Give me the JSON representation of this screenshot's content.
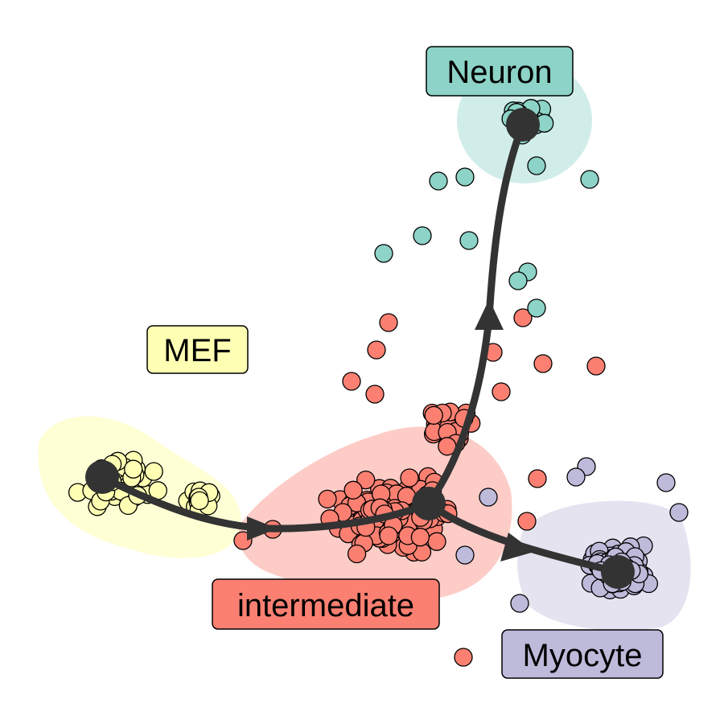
{
  "colors": {
    "MEF": "#FFFFB3",
    "intermediate": "#FB8072",
    "Neuron": "#8DD3C7",
    "Myocyte": "#BEBADA",
    "trajectory": "#333333",
    "outline": "#000000"
  },
  "labels": {
    "mef": "MEF",
    "intermediate": "intermediate",
    "neuron": "Neuron",
    "myocyte": "Myocyte"
  },
  "chart_data": {
    "type": "scatter",
    "title": "",
    "xlabel": "",
    "ylabel": "",
    "groups": [
      "MEF",
      "intermediate",
      "Neuron",
      "Myocyte"
    ],
    "trajectory": {
      "nodes": [
        {
          "name": "MEF",
          "x": 0.13,
          "y": 0.57
        },
        {
          "name": "branch",
          "x": 0.54,
          "y": 0.47
        },
        {
          "name": "Neuron",
          "x": 0.67,
          "y": 1.29
        },
        {
          "name": "Myocyte",
          "x": 0.79,
          "y": 0.36
        }
      ],
      "edges": [
        [
          "MEF",
          "branch"
        ],
        [
          "branch",
          "Neuron"
        ],
        [
          "branch",
          "Myocyte"
        ]
      ]
    }
  }
}
